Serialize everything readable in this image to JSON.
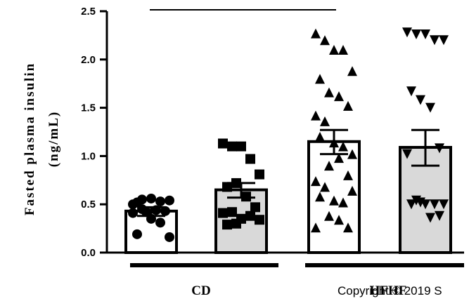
{
  "chart_data": {
    "type": "bar",
    "ylabel_line1": "Fasted plasma insulin",
    "ylabel_line2": "(ng/mL)",
    "ylim": [
      0,
      2.5
    ],
    "yticks": [
      "0.0",
      "0.5",
      "1.0",
      "1.5",
      "2.0",
      "2.5"
    ],
    "grid": false,
    "groups": [
      {
        "label": "CD",
        "bars": [
          0,
          1
        ]
      },
      {
        "label": "HFHF",
        "bars": [
          2,
          3
        ]
      }
    ],
    "bars": [
      {
        "value": 0.43,
        "sem_low": 0.38,
        "sem_high": 0.47,
        "fill": "#ffffff",
        "marker": "circle",
        "points": [
          0.5,
          0.55,
          0.56,
          0.53,
          0.54,
          0.52,
          0.42,
          0.44,
          0.43,
          0.41,
          0.45,
          0.35,
          0.31,
          0.16,
          0.19
        ]
      },
      {
        "value": 0.65,
        "sem_low": 0.57,
        "sem_high": 0.72,
        "fill": "#d9d9d9",
        "marker": "square",
        "points": [
          1.13,
          1.1,
          1.1,
          0.97,
          0.81,
          0.68,
          0.72,
          0.58,
          0.47,
          0.41,
          0.42,
          0.35,
          0.38,
          0.34,
          0.29,
          0.3
        ]
      },
      {
        "value": 1.15,
        "sem_low": 1.02,
        "sem_high": 1.27,
        "fill": "#ffffff",
        "marker": "triangle",
        "points": [
          2.27,
          2.2,
          2.1,
          2.1,
          1.88,
          1.8,
          1.66,
          1.62,
          1.52,
          1.42,
          1.36,
          1.14,
          1.1,
          1.02,
          1.2,
          0.9,
          0.98,
          0.8,
          0.74,
          0.68,
          0.54,
          0.52,
          0.64,
          0.58,
          0.38,
          0.34,
          0.26,
          0.26
        ]
      },
      {
        "value": 1.09,
        "sem_low": 0.9,
        "sem_high": 1.27,
        "fill": "#d9d9d9",
        "marker": "triangle-down",
        "points": [
          2.28,
          2.26,
          2.26,
          2.2,
          2.2,
          1.67,
          1.58,
          1.5,
          1.08,
          1.02,
          0.54,
          0.5,
          0.5,
          0.5,
          0.5,
          0.52,
          0.36,
          0.38
        ]
      }
    ],
    "copyright": "Copyright © 2019 S"
  }
}
